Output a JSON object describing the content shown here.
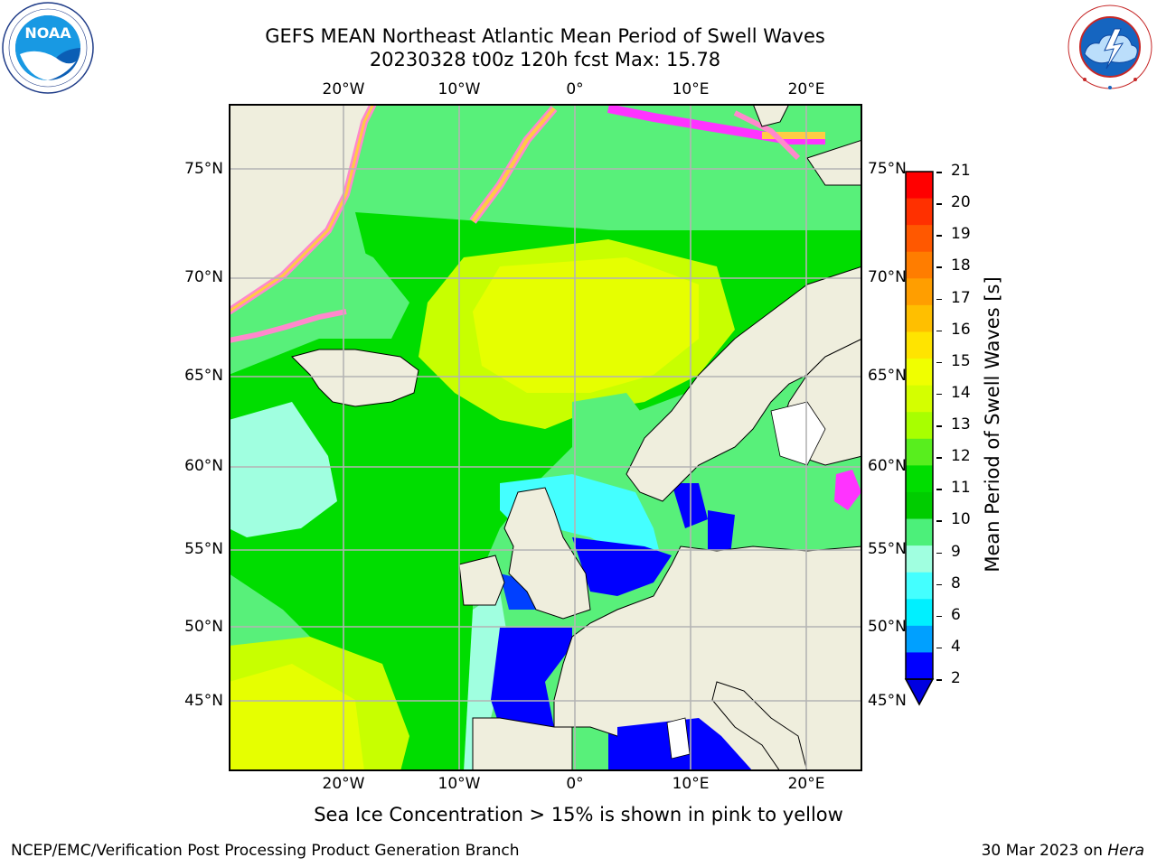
{
  "title": {
    "line1": "GEFS MEAN Northeast Atlantic Mean Period of Swell Waves",
    "line2": "20230328 t00z 120h fcst   Max: 15.78"
  },
  "logos": {
    "left": {
      "name": "NOAA",
      "ring_text": "NATIONAL OCEANIC AND ATMOSPHERIC ADMINISTRATION · U.S. DEPARTMENT OF COMMERCE"
    },
    "right": {
      "name": "NATIONAL WEATHER SERVICE"
    }
  },
  "map": {
    "lon_labels_top": [
      "20°W",
      "10°W",
      "0°",
      "10°E",
      "20°E"
    ],
    "lon_labels_bottom": [
      "20°W",
      "10°W",
      "0°",
      "10°E",
      "20°E"
    ],
    "lat_labels_left": [
      "75°N",
      "70°N",
      "65°N",
      "60°N",
      "55°N",
      "50°N",
      "45°N"
    ],
    "lat_labels_right": [
      "75°N",
      "70°N",
      "65°N",
      "60°N",
      "55°N",
      "50°N",
      "45°N"
    ],
    "grid": true,
    "land_color": "#efeedd",
    "sea_ice_colors": [
      "#ff33ff",
      "#ff88cc",
      "#ffcc44",
      "#ffff00"
    ]
  },
  "colorbar": {
    "label": "Mean Period of Swell Waves [s]",
    "ticks": [
      "21",
      "20",
      "19",
      "18",
      "17",
      "16",
      "15",
      "14",
      "13",
      "12",
      "11",
      "10",
      "9",
      "8",
      "6",
      "4",
      "2"
    ],
    "colors_top_to_bottom": [
      "#ff0000",
      "#ff3000",
      "#ff5800",
      "#ff7d00",
      "#ff9e00",
      "#ffbf00",
      "#ffe400",
      "#f0ff00",
      "#d4ff00",
      "#a8ff00",
      "#58ee1e",
      "#00dd00",
      "#00cc00",
      "#4cf07a",
      "#a0ffe0",
      "#44ffff",
      "#00f0ff",
      "#00a0ff",
      "#0000ff"
    ],
    "extend_color": "#0000e0"
  },
  "caption": "Sea Ice Concentration > 15% is shown in pink to yellow",
  "footer": {
    "left": "NCEP/EMC/Verification Post Processing Product Generation Branch",
    "right_prefix": "30 Mar 2023 on ",
    "right_host": "Hera"
  }
}
